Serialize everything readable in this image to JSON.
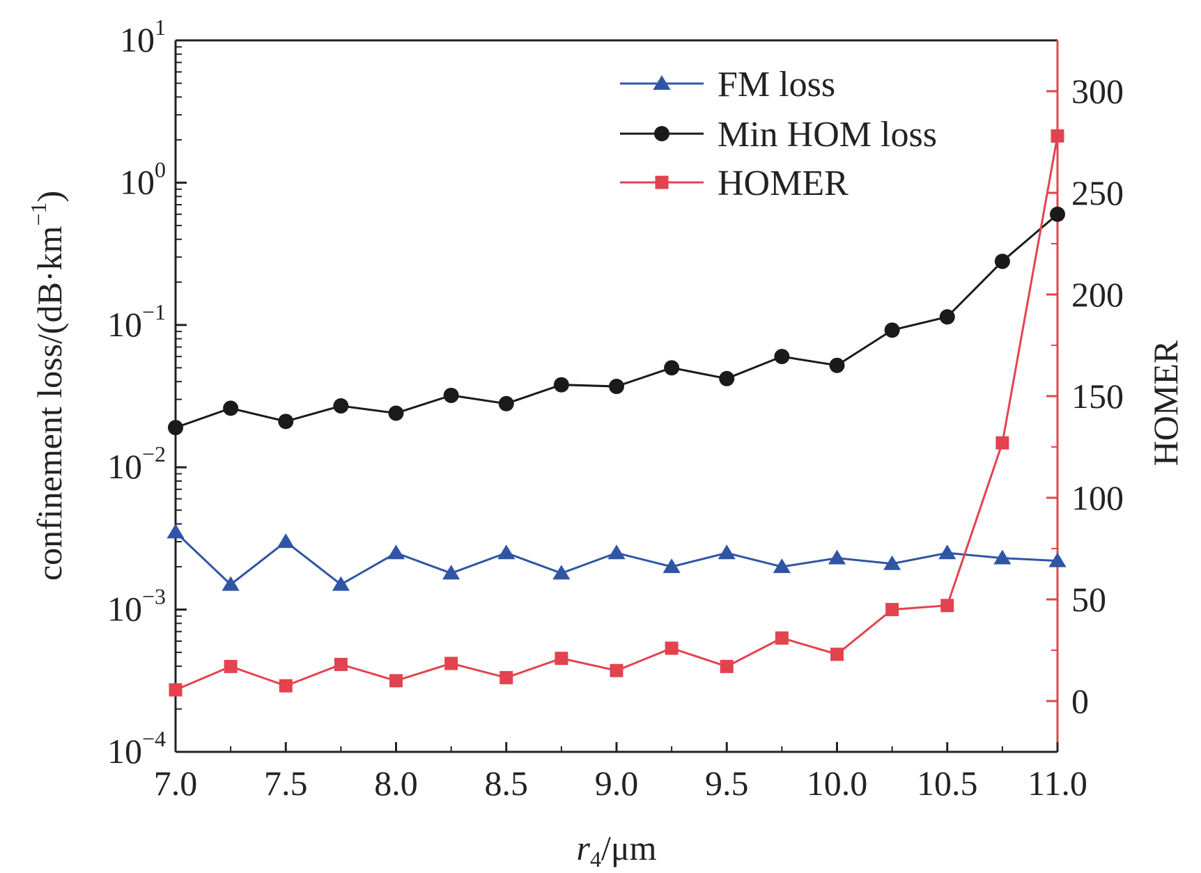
{
  "chart_data": {
    "type": "line",
    "xlabel": {
      "var": "r",
      "sub": "4",
      "unit": "/μm"
    },
    "ylabel_left": {
      "base": "confinement loss/(dB·km",
      "sup": "−1",
      "tail": ")"
    },
    "ylabel_right": "HOMER",
    "x": [
      7.0,
      7.25,
      7.5,
      7.75,
      8.0,
      8.25,
      8.5,
      8.75,
      9.0,
      9.25,
      9.5,
      9.75,
      10.0,
      10.25,
      10.5,
      10.75,
      11.0
    ],
    "xlim": [
      7.0,
      11.0
    ],
    "xticks": [
      "7.0",
      "7.5",
      "8.0",
      "8.5",
      "9.0",
      "9.5",
      "10.0",
      "10.5",
      "11.0"
    ],
    "ylim_left": [
      0.0001,
      10
    ],
    "yscale_left": "log",
    "yticks_left": [
      {
        "base": "10",
        "exp": "1"
      },
      {
        "base": "10",
        "exp": "0"
      },
      {
        "base": "10",
        "exp": "−1"
      },
      {
        "base": "10",
        "exp": "−2"
      },
      {
        "base": "10",
        "exp": "−3"
      },
      {
        "base": "10",
        "exp": "−4"
      }
    ],
    "ylim_right": [
      -25,
      325
    ],
    "yticks_right": [
      "0",
      "50",
      "100",
      "150",
      "200",
      "250",
      "300"
    ],
    "legend_position": "top-right",
    "series": [
      {
        "name": "FM loss",
        "axis": "left",
        "color": "#2f55a4",
        "marker": "triangle",
        "values": [
          0.0035,
          0.0015,
          0.003,
          0.0015,
          0.0025,
          0.0018,
          0.0025,
          0.0018,
          0.0025,
          0.002,
          0.0025,
          0.002,
          0.0023,
          0.0021,
          0.0025,
          0.0023,
          0.0022
        ]
      },
      {
        "name": "Min HOM loss",
        "axis": "left",
        "color": "#1a1a1a",
        "marker": "circle",
        "values": [
          0.019,
          0.026,
          0.021,
          0.027,
          0.024,
          0.032,
          0.028,
          0.038,
          0.037,
          0.05,
          0.042,
          0.06,
          0.052,
          0.092,
          0.114,
          0.28,
          0.6
        ]
      },
      {
        "name": "HOMER",
        "axis": "right",
        "color": "#e3434f",
        "marker": "square",
        "values": [
          5.5,
          17,
          7.5,
          18,
          10,
          18.5,
          11.5,
          21,
          15,
          26,
          17,
          31,
          23,
          45,
          47,
          127,
          278
        ]
      }
    ]
  }
}
